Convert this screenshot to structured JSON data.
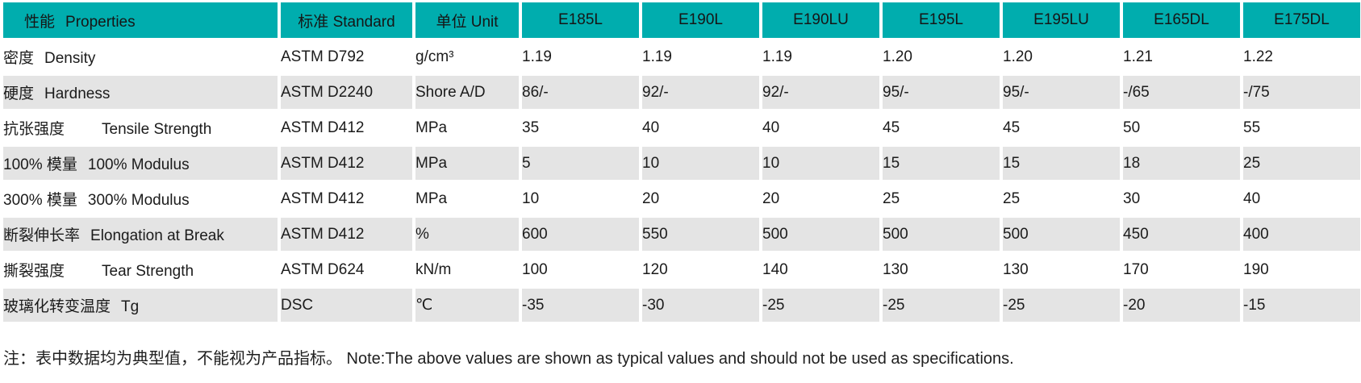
{
  "table": {
    "header": {
      "properties": {
        "zh": "性能",
        "en": "Properties"
      },
      "standard": "标准 Standard",
      "unit": "单位 Unit",
      "grades": [
        "E185L",
        "E190L",
        "E190LU",
        "E195L",
        "E195LU",
        "E165DL",
        "E175DL"
      ]
    },
    "rows": [
      {
        "zh": "密度",
        "en": "Density",
        "standard": "ASTM D792",
        "unit": "g/cm³",
        "values": [
          "1.19",
          "1.19",
          "1.19",
          "1.20",
          "1.20",
          "1.21",
          "1.22"
        ]
      },
      {
        "zh": "硬度",
        "en": "Hardness",
        "standard": "ASTM D2240",
        "unit": "Shore A/D",
        "values": [
          "86/-",
          "92/-",
          "92/-",
          "95/-",
          "95/-",
          "-/65",
          "-/75"
        ]
      },
      {
        "zh": "抗张强度",
        "en": "Tensile Strength",
        "standard": "ASTM D412",
        "unit": "MPa",
        "values": [
          "35",
          "40",
          "40",
          "45",
          "45",
          "50",
          "55"
        ]
      },
      {
        "zh": "100% 模量",
        "en": "100% Modulus",
        "standard": "ASTM D412",
        "unit": "MPa",
        "values": [
          "5",
          "10",
          "10",
          "15",
          "15",
          "18",
          "25"
        ]
      },
      {
        "zh": "300% 模量",
        "en": "300% Modulus",
        "standard": "ASTM D412",
        "unit": "MPa",
        "values": [
          "10",
          "20",
          "20",
          "25",
          "25",
          "30",
          "40"
        ]
      },
      {
        "zh": "断裂伸长率",
        "en": "Elongation at Break",
        "standard": "ASTM D412",
        "unit": "%",
        "values": [
          "600",
          "550",
          "500",
          "500",
          "500",
          "450",
          "400"
        ]
      },
      {
        "zh": "撕裂强度",
        "en": "Tear Strength",
        "standard": "ASTM D624",
        "unit": "kN/m",
        "values": [
          "100",
          "120",
          "140",
          "130",
          "130",
          "170",
          "190"
        ]
      },
      {
        "zh": "玻璃化转变温度",
        "en": "Tg",
        "standard": "DSC",
        "unit": "℃",
        "values": [
          "-35",
          "-30",
          "-25",
          "-25",
          "-25",
          "-20",
          "-15"
        ]
      }
    ]
  },
  "note": "注：表中数据均为典型值，不能视为产品指标。 Note:The above values are shown as typical values and should not be used as specifications.",
  "colors": {
    "header_bg": "#00adae",
    "row_alt_bg": "#e4e4e4",
    "text": "#1b1b1b"
  }
}
